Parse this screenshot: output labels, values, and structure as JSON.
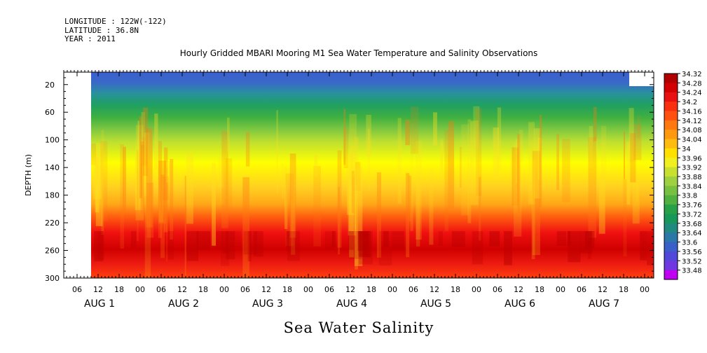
{
  "meta": {
    "longitude": "LONGITUDE : 122W(-122)",
    "latitude": "LATITUDE : 36.8N",
    "year": "YEAR : 2011"
  },
  "chart_data": {
    "type": "heatmap",
    "title": "Hourly Gridded MBARI Mooring M1 Sea Water Temperature and Salinity Observations",
    "xlabel": "",
    "ylabel": "DEPTH (m)",
    "variable_label": "Sea Water Salinity",
    "y_ticks": [
      "20",
      "60",
      "100",
      "140",
      "180",
      "220",
      "260",
      "300"
    ],
    "y_tick_values": [
      20,
      60,
      100,
      140,
      180,
      220,
      260,
      300
    ],
    "ylim": [
      300,
      2
    ],
    "x_hour_ticks": [
      "06",
      "12",
      "18",
      "00",
      "06",
      "12",
      "18",
      "00",
      "06",
      "12",
      "18",
      "00",
      "06",
      "12",
      "18",
      "00",
      "06",
      "12",
      "18",
      "00",
      "06",
      "12",
      "18",
      "00",
      "06",
      "12",
      "18",
      "00"
    ],
    "x_day_labels": [
      "AUG  1",
      "AUG  2",
      "AUG  3",
      "AUG  4",
      "AUG  5",
      "AUG  6",
      "AUG  7"
    ],
    "colorbar_levels": [
      "34.32",
      "34.28",
      "34.24",
      "34.2",
      "34.16",
      "34.12",
      "34.08",
      "34.04",
      "34",
      "33.96",
      "33.92",
      "33.88",
      "33.84",
      "33.8",
      "33.76",
      "33.72",
      "33.68",
      "33.64",
      "33.6",
      "33.56",
      "33.52",
      "33.48"
    ],
    "colorbar_colors": [
      "#b00000",
      "#d20000",
      "#e81010",
      "#f83010",
      "#ff5010",
      "#ff7810",
      "#ff9a10",
      "#ffbc10",
      "#ffe000",
      "#f0f020",
      "#c8e030",
      "#9ed040",
      "#78c040",
      "#50b040",
      "#28a048",
      "#189858",
      "#208a80",
      "#2a78a8",
      "#3860c8",
      "#5048d8",
      "#7038e0",
      "#c000f0"
    ],
    "depth_profile": [
      {
        "depth": 10,
        "salinity": 33.6
      },
      {
        "depth": 20,
        "salinity": 33.62
      },
      {
        "depth": 40,
        "salinity": 33.68
      },
      {
        "depth": 60,
        "salinity": 33.76
      },
      {
        "depth": 80,
        "salinity": 33.84
      },
      {
        "depth": 100,
        "salinity": 33.9
      },
      {
        "depth": 120,
        "salinity": 33.96
      },
      {
        "depth": 140,
        "salinity": 34.02
      },
      {
        "depth": 160,
        "salinity": 34.06
      },
      {
        "depth": 180,
        "salinity": 34.08
      },
      {
        "depth": 200,
        "salinity": 34.12
      },
      {
        "depth": 220,
        "salinity": 34.16
      },
      {
        "depth": 240,
        "salinity": 34.22
      },
      {
        "depth": 260,
        "salinity": 34.26
      },
      {
        "depth": 280,
        "salinity": 34.24
      },
      {
        "depth": 300,
        "salinity": 34.2
      }
    ]
  }
}
